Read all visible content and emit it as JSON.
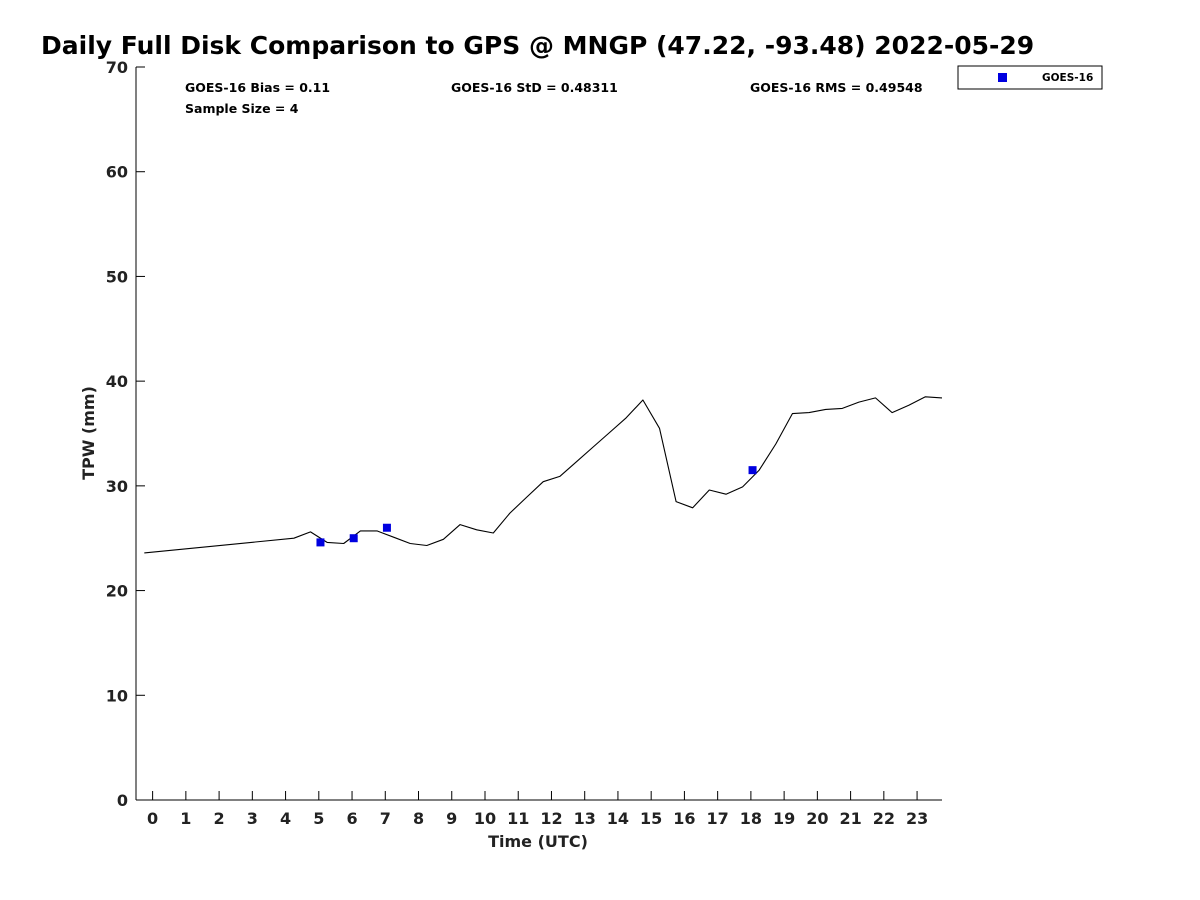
{
  "chart_data": {
    "type": "line",
    "title": "Daily Full Disk Comparison to GPS @ MNGP (47.22, -93.48) 2022-05-29",
    "xlabel": "Time (UTC)",
    "ylabel": "TPW (mm)",
    "xlim": [
      -0.5,
      23.75
    ],
    "ylim": [
      0,
      70
    ],
    "x_ticks": [
      0,
      1,
      2,
      3,
      4,
      5,
      6,
      7,
      8,
      9,
      10,
      11,
      12,
      13,
      14,
      15,
      16,
      17,
      18,
      19,
      20,
      21,
      22,
      23
    ],
    "y_ticks": [
      0,
      10,
      20,
      30,
      40,
      50,
      60,
      70
    ],
    "grid": false,
    "legend_position": "top-right, outside plot",
    "stats": {
      "bias": "GOES-16 Bias = 0.11",
      "std": "GOES-16 StD = 0.48311",
      "rms": "GOES-16 RMS = 0.49548",
      "sample_size": "Sample Size = 4"
    },
    "series": [
      {
        "kind": "line",
        "color": "#000000",
        "x": [
          -0.25,
          4.25,
          4.75,
          5.25,
          5.75,
          6.25,
          6.75,
          7.25,
          7.75,
          8.25,
          8.75,
          9.25,
          9.75,
          10.25,
          10.75,
          11.25,
          11.75,
          12.25,
          12.75,
          13.25,
          13.75,
          14.25,
          14.75,
          15.25,
          15.75,
          16.25,
          16.75,
          17.25,
          17.75,
          18.25,
          18.75,
          19.25,
          19.75,
          20.25,
          20.75,
          21.25,
          21.75,
          22.25,
          22.75,
          23.25,
          23.75
        ],
        "y": [
          23.6,
          25.0,
          25.6,
          24.6,
          24.5,
          25.7,
          25.7,
          25.1,
          24.5,
          24.3,
          24.9,
          26.3,
          25.8,
          25.5,
          27.4,
          28.9,
          30.4,
          30.9,
          32.3,
          33.7,
          35.1,
          36.5,
          38.2,
          35.5,
          28.5,
          27.9,
          29.6,
          29.2,
          29.9,
          31.5,
          34.0,
          36.9,
          37.0,
          37.3,
          37.4,
          38.0,
          38.4,
          37.0,
          37.7,
          38.5,
          38.4
        ]
      },
      {
        "name": "GOES-16",
        "kind": "scatter",
        "marker": "square",
        "color": "#0000e0",
        "x": [
          5.05,
          6.05,
          7.05,
          18.05
        ],
        "y": [
          24.6,
          25.0,
          26.0,
          31.5
        ]
      }
    ]
  }
}
